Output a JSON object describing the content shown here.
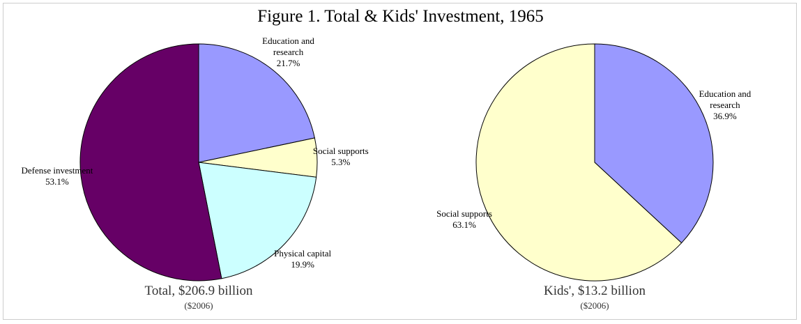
{
  "title": "Figure 1. Total & Kids' Investment, 1965",
  "chart_data": [
    {
      "type": "pie",
      "categories": [
        "Education and research",
        "Social supports",
        "Physical capital",
        "Defense investment"
      ],
      "values": [
        21.7,
        5.3,
        19.9,
        53.1
      ],
      "value_labels": [
        "21.7%",
        "5.3%",
        "19.9%",
        "53.1%"
      ],
      "colors": [
        "#9999ff",
        "#ffffcc",
        "#ccffff",
        "#660066"
      ],
      "caption": "Total, $206.9 billion",
      "subcaption": "($2006)"
    },
    {
      "type": "pie",
      "categories": [
        "Education and research",
        "Social supports"
      ],
      "values": [
        36.9,
        63.1
      ],
      "value_labels": [
        "36.9%",
        "63.1%"
      ],
      "colors": [
        "#9999ff",
        "#ffffcc"
      ],
      "caption": "Kids', $13.2 billion",
      "subcaption": "($2006)"
    }
  ]
}
